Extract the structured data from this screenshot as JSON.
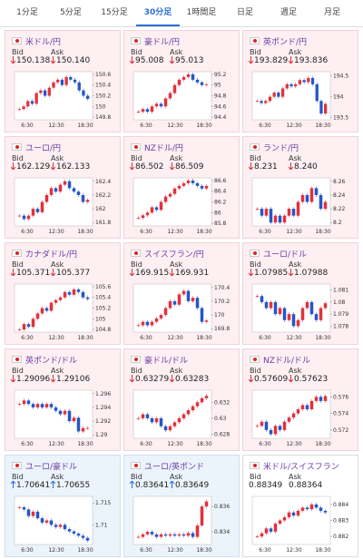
{
  "tabs": {
    "items": [
      "1分足",
      "5分足",
      "15分足",
      "30分足",
      "1時間足",
      "日足",
      "週足",
      "月足"
    ],
    "active": 3
  },
  "labels": {
    "bid": "Bid",
    "ask": "Ask"
  },
  "xticks": [
    "6:30",
    "12:30",
    "18:30"
  ],
  "tiles": [
    {
      "name": "米ドル/円",
      "bid": "150.138",
      "ask": "150.140",
      "direction": "down",
      "ylim": [
        149.75,
        150.65
      ],
      "yticks": [
        150.6,
        150.4,
        150.2,
        150,
        149.8
      ],
      "closes": [
        149.95,
        150.0,
        150.1,
        150.05,
        150.25,
        150.3,
        150.2,
        150.35,
        150.45,
        150.5,
        150.4,
        150.55,
        150.5,
        150.45,
        150.3,
        150.2,
        150.14
      ]
    },
    {
      "name": "豪ドル/円",
      "bid": "95.008",
      "ask": "95.013",
      "direction": "down",
      "ylim": [
        94.35,
        95.25
      ],
      "yticks": [
        95.2,
        95,
        94.8,
        94.6,
        94.4
      ],
      "closes": [
        94.5,
        94.55,
        94.5,
        94.6,
        94.65,
        94.6,
        94.75,
        94.85,
        95.0,
        95.1,
        95.15,
        95.2,
        95.1,
        95.05,
        95.0,
        95.01
      ]
    },
    {
      "name": "英ポンド/円",
      "bid": "193.829",
      "ask": "193.836",
      "direction": "down",
      "ylim": [
        193.45,
        194.6
      ],
      "yticks": [
        194.5,
        194,
        193.5
      ],
      "closes": [
        193.9,
        193.85,
        193.9,
        194.0,
        194.1,
        194.0,
        194.2,
        194.3,
        194.25,
        194.3,
        194.4,
        194.35,
        194.45,
        194.3,
        193.9,
        193.6,
        193.83
      ]
    },
    {
      "name": "ユーロ/円",
      "bid": "162.129",
      "ask": "162.133",
      "direction": "down",
      "ylim": [
        161.75,
        162.45
      ],
      "yticks": [
        162.4,
        162.2,
        162,
        161.8
      ],
      "closes": [
        161.9,
        161.85,
        161.9,
        162.0,
        161.95,
        162.1,
        162.2,
        162.3,
        162.25,
        162.35,
        162.4,
        162.3,
        162.25,
        162.2,
        162.1,
        162.13
      ]
    },
    {
      "name": "NZドル/円",
      "bid": "86.502",
      "ask": "86.509",
      "direction": "down",
      "ylim": [
        85.75,
        86.65
      ],
      "yticks": [
        86.6,
        86.4,
        86.2,
        86,
        85.8
      ],
      "closes": [
        85.9,
        85.95,
        86.0,
        86.1,
        86.05,
        86.2,
        86.3,
        86.35,
        86.45,
        86.5,
        86.55,
        86.6,
        86.55,
        86.5,
        86.45,
        86.5
      ]
    },
    {
      "name": "ランド/円",
      "bid": "8.231",
      "ask": "8.240",
      "direction": "down",
      "ylim": [
        8.195,
        8.265
      ],
      "yticks": [
        8.26,
        8.24,
        8.22,
        8.2
      ],
      "closes": [
        8.22,
        8.21,
        8.22,
        8.2,
        8.21,
        8.2,
        8.21,
        8.22,
        8.21,
        8.23,
        8.24,
        8.23,
        8.25,
        8.24,
        8.22,
        8.23
      ]
    },
    {
      "name": "カナダドル/円",
      "bid": "105.371",
      "ask": "105.377",
      "direction": "down",
      "ylim": [
        104.75,
        105.65
      ],
      "yticks": [
        105.6,
        105.4,
        105.2,
        105,
        104.8
      ],
      "closes": [
        104.8,
        104.9,
        104.85,
        105.0,
        105.1,
        105.2,
        105.15,
        105.3,
        105.35,
        105.4,
        105.5,
        105.45,
        105.55,
        105.5,
        105.4,
        105.37
      ]
    },
    {
      "name": "スイスフラン/円",
      "bid": "169.915",
      "ask": "169.931",
      "direction": "down",
      "ylim": [
        169.75,
        170.45
      ],
      "yticks": [
        170.4,
        170.2,
        170,
        169.8
      ],
      "closes": [
        169.85,
        169.9,
        169.85,
        169.9,
        169.95,
        170.0,
        170.1,
        170.2,
        170.15,
        170.3,
        170.35,
        170.2,
        170.25,
        170.1,
        169.9,
        169.92
      ]
    },
    {
      "name": "ユーロ/ドル",
      "bid": "1.07985",
      "ask": "1.07988",
      "direction": "down",
      "ylim": [
        1.0775,
        1.0815
      ],
      "yticks": [
        1.081,
        1.08,
        1.079,
        1.078
      ],
      "closes": [
        1.0805,
        1.08,
        1.0795,
        1.08,
        1.079,
        1.0795,
        1.0785,
        1.079,
        1.078,
        1.0785,
        1.0795,
        1.08,
        1.079,
        1.0785,
        1.0795,
        1.0799
      ]
    },
    {
      "name": "英ポンド/ドル",
      "bid": "1.29096",
      "ask": "1.29106",
      "direction": "down",
      "ylim": [
        1.2895,
        1.2965
      ],
      "yticks": [
        1.296,
        1.294,
        1.292,
        1.29
      ],
      "closes": [
        1.2945,
        1.295,
        1.2945,
        1.294,
        1.2945,
        1.294,
        1.2945,
        1.294,
        1.2935,
        1.293,
        1.2935,
        1.292,
        1.2925,
        1.2905,
        1.291,
        1.291
      ]
    },
    {
      "name": "豪ドル/ドル",
      "bid": "0.63279",
      "ask": "0.63283",
      "direction": "down",
      "ylim": [
        0.6275,
        0.6335
      ],
      "yticks": [
        0.632,
        0.63,
        0.628
      ],
      "closes": [
        0.63,
        0.6305,
        0.63,
        0.6295,
        0.63,
        0.629,
        0.6285,
        0.629,
        0.6295,
        0.63,
        0.6305,
        0.631,
        0.6315,
        0.632,
        0.6325,
        0.6328
      ]
    },
    {
      "name": "NZドル/ドル",
      "bid": "0.57609",
      "ask": "0.57623",
      "direction": "down",
      "ylim": [
        0.571,
        0.5768
      ],
      "yticks": [
        0.576,
        0.574,
        0.572
      ],
      "closes": [
        0.5725,
        0.573,
        0.572,
        0.5715,
        0.5725,
        0.572,
        0.573,
        0.5735,
        0.574,
        0.5745,
        0.575,
        0.5745,
        0.5755,
        0.576,
        0.5755,
        0.5761
      ]
    },
    {
      "name": "ユーロ/豪ドル",
      "bid": "1.70641",
      "ask": "1.70655",
      "direction": "up",
      "ylim": [
        1.7055,
        1.7165
      ],
      "yticks": [
        1.715,
        1.71
      ],
      "closes": [
        1.714,
        1.7135,
        1.712,
        1.713,
        1.7115,
        1.7105,
        1.711,
        1.71,
        1.7095,
        1.71,
        1.709,
        1.7085,
        1.708,
        1.7075,
        1.707,
        1.7064
      ]
    },
    {
      "name": "ユーロ/英ポンド",
      "bid": "0.83641",
      "ask": "0.83649",
      "direction": "up",
      "ylim": [
        0.833,
        0.8368
      ],
      "yticks": [
        0.836,
        0.834
      ],
      "closes": [
        0.8336,
        0.8338,
        0.834,
        0.8338,
        0.8336,
        0.8338,
        0.8337,
        0.8338,
        0.8337,
        0.8338,
        0.8337,
        0.8339,
        0.8336,
        0.8345,
        0.836,
        0.8364
      ]
    },
    {
      "name": "米ドル/スイスフラン",
      "bid": "0.88349",
      "ask": "0.88364",
      "direction": null,
      "ylim": [
        0.8815,
        0.8845
      ],
      "yticks": [
        0.884,
        0.883,
        0.882
      ],
      "closes": [
        0.882,
        0.8822,
        0.8825,
        0.8823,
        0.8828,
        0.883,
        0.8832,
        0.8835,
        0.8833,
        0.8836,
        0.8838,
        0.8837,
        0.884,
        0.8838,
        0.8836,
        0.8835
      ]
    }
  ]
}
